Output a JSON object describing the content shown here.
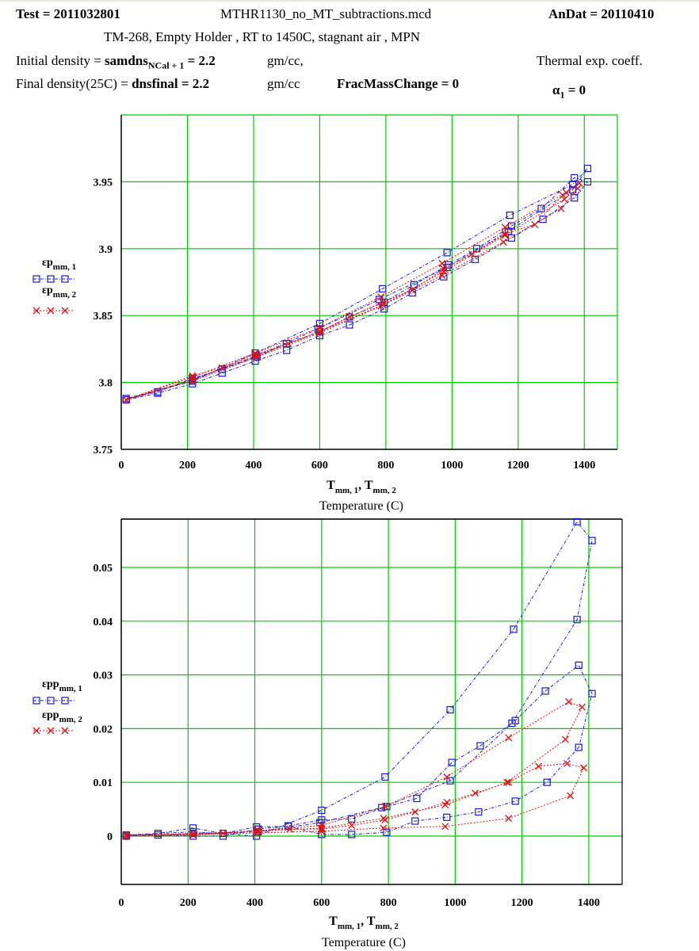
{
  "header": {
    "test_label": "Test = 2011032801",
    "filename": "MTHR1130_no_MT_subtractions.mcd",
    "andat_label": "AnDat = 20110410",
    "subtitle": "TM-268, Empty Holder , RT to 1450C, stagnant air , MPN",
    "initial_density_label": "Initial density =",
    "initial_density_var": "samdns",
    "initial_density_sub": "NCal + 1",
    "initial_density_value": "= 2.2",
    "initial_density_unit": "gm/cc,",
    "final_density_label": "Final density(25C) =",
    "final_density_var": "dnsfinal",
    "final_density_value": "= 2.2",
    "final_density_unit": "gm/cc",
    "frac_mass_change": "FracMassChange = 0",
    "thermal_label": "Thermal exp. coeff.",
    "alpha_symbol": "α",
    "alpha_sub": "1",
    "alpha_value": "= 0"
  },
  "colors": {
    "grid": "#00cc00",
    "series1": "#1a1acc",
    "series2": "#e01010"
  },
  "chart_data": [
    {
      "type": "line",
      "xlabel_main": "T",
      "xlabel_sub1": "mm, 1",
      "xlabel_sep": ", T",
      "xlabel_sub2": "mm, 2",
      "xcaption": "Temperature (C)",
      "xlim": [
        0,
        1500
      ],
      "ylim": [
        3.75,
        4.0
      ],
      "xticks": [
        0,
        200,
        400,
        600,
        800,
        1000,
        1200,
        1400
      ],
      "xtick_labels": [
        "0",
        "200",
        "400",
        "600",
        "800",
        "1000",
        "1200",
        "1400"
      ],
      "yticks": [
        3.75,
        3.8,
        3.85,
        3.9,
        3.95
      ],
      "ytick_labels": [
        "3.75",
        "3.8",
        "3.85",
        "3.9",
        "3.95"
      ],
      "grid": true,
      "series": [
        {
          "name": "εp",
          "name_sub": "mm, 1",
          "marker": "square",
          "color": "#1a1acc",
          "x": [
            15,
            110,
            215,
            305,
            405,
            500,
            600,
            690,
            795,
            880,
            975,
            1070,
            1180,
            1275,
            1370,
            1410,
            1370,
            1270,
            1180,
            1075,
            990,
            885,
            795,
            690,
            600,
            500,
            410,
            305,
            215,
            110,
            15,
            215,
            405,
            600,
            790,
            985,
            1175,
            1365,
            1410,
            1365,
            1170,
            985,
            780,
            595,
            410,
            215,
            15
          ],
          "y": [
            3.787,
            3.792,
            3.799,
            3.807,
            3.816,
            3.824,
            3.835,
            3.843,
            3.855,
            3.867,
            3.879,
            3.892,
            3.908,
            3.922,
            3.938,
            3.95,
            3.953,
            3.93,
            3.917,
            3.9,
            3.888,
            3.873,
            3.86,
            3.849,
            3.838,
            3.829,
            3.819,
            3.81,
            3.803,
            3.793,
            3.788,
            3.801,
            3.822,
            3.844,
            3.87,
            3.897,
            3.925,
            3.948,
            3.96,
            3.944,
            3.913,
            3.886,
            3.862,
            3.84,
            3.82,
            3.802,
            3.787
          ]
        },
        {
          "name": "εp",
          "name_sub": "mm, 2",
          "marker": "x",
          "color": "#e01010",
          "x": [
            15,
            215,
            410,
            600,
            790,
            975,
            1160,
            1340,
            1380,
            1330,
            1155,
            970,
            785,
            600,
            410,
            215,
            15,
            215,
            405,
            600,
            785,
            970,
            1160,
            1345,
            1385,
            1335,
            1250,
            1160,
            1060,
            975,
            880,
            790,
            690,
            600,
            505,
            405,
            305,
            215,
            15
          ],
          "y": [
            3.787,
            3.802,
            3.82,
            3.838,
            3.858,
            3.883,
            3.91,
            3.937,
            3.945,
            3.93,
            3.905,
            3.88,
            3.857,
            3.837,
            3.819,
            3.801,
            3.787,
            3.804,
            3.822,
            3.841,
            3.864,
            3.889,
            3.916,
            3.942,
            3.949,
            3.94,
            3.918,
            3.911,
            3.896,
            3.885,
            3.869,
            3.86,
            3.849,
            3.838,
            3.829,
            3.821,
            3.811,
            3.805,
            3.787
          ]
        }
      ]
    },
    {
      "type": "line",
      "xlabel_main": "T",
      "xlabel_sub1": "mm, 1",
      "xlabel_sep": ", T",
      "xlabel_sub2": "mm, 2",
      "xcaption": "Temperature (C)",
      "xlim": [
        0,
        1500
      ],
      "ylim": [
        -0.009,
        0.059
      ],
      "xticks": [
        0,
        200,
        400,
        600,
        800,
        1000,
        1200,
        1400
      ],
      "xtick_labels": [
        "0",
        "200",
        "400",
        "600",
        "800",
        "1000",
        "1200",
        "1400"
      ],
      "yticks": [
        0,
        0.01,
        0.02,
        0.03,
        0.04,
        0.05
      ],
      "ytick_labels": [
        "0",
        "0.01",
        "0.02",
        "0.03",
        "0.04",
        "0.05"
      ],
      "grid": true,
      "series": [
        {
          "name": "εpp",
          "name_sub": "mm, 1",
          "marker": "square",
          "color": "#1a1acc",
          "x": [
            15,
            110,
            215,
            305,
            405,
            500,
            600,
            690,
            795,
            880,
            975,
            1070,
            1180,
            1275,
            1370,
            1410,
            1370,
            1270,
            1180,
            1075,
            990,
            885,
            795,
            690,
            600,
            500,
            410,
            305,
            215,
            110,
            15,
            215,
            405,
            600,
            790,
            985,
            1175,
            1365,
            1410,
            1365,
            1170,
            985,
            780,
            595,
            410,
            215,
            15
          ],
          "y": [
            0.0,
            0.0005,
            0.0015,
            0.0005,
            0.0017,
            0.0018,
            0.0003,
            0.0003,
            0.0007,
            0.0028,
            0.0035,
            0.0045,
            0.0065,
            0.01,
            0.0165,
            0.0265,
            0.0318,
            0.027,
            0.0215,
            0.0168,
            0.0137,
            0.007,
            0.0055,
            0.0032,
            0.003,
            0.0019,
            0.0013,
            0.0,
            0.0,
            0.0002,
            0.0002,
            0.0008,
            0.0,
            0.0048,
            0.011,
            0.0235,
            0.0385,
            0.0585,
            0.055,
            0.0403,
            0.021,
            0.0103,
            0.0053,
            0.0025,
            0.0008,
            0.0005,
            0.0
          ]
        },
        {
          "name": "εpp",
          "name_sub": "mm, 2",
          "marker": "x",
          "color": "#e01010",
          "x": [
            15,
            215,
            410,
            600,
            790,
            975,
            1160,
            1340,
            1380,
            1330,
            1155,
            970,
            785,
            600,
            410,
            215,
            15,
            215,
            405,
            600,
            785,
            970,
            1160,
            1345,
            1385,
            1335,
            1250,
            1160,
            1060,
            975,
            880,
            790,
            690,
            600,
            505,
            405,
            305,
            215,
            15
          ],
          "y": [
            0.0003,
            0.0003,
            0.001,
            0.002,
            0.0055,
            0.011,
            0.0183,
            0.025,
            0.024,
            0.018,
            0.01,
            0.0058,
            0.0033,
            0.0015,
            0.0009,
            0.0004,
            0.0002,
            0.0003,
            0.0006,
            0.0009,
            0.0015,
            0.0018,
            0.0033,
            0.0075,
            0.0127,
            0.0135,
            0.013,
            0.01,
            0.008,
            0.0063,
            0.0045,
            0.003,
            0.002,
            0.0013,
            0.0013,
            0.001,
            0.0005,
            0.0002,
            0.0
          ]
        }
      ]
    }
  ]
}
